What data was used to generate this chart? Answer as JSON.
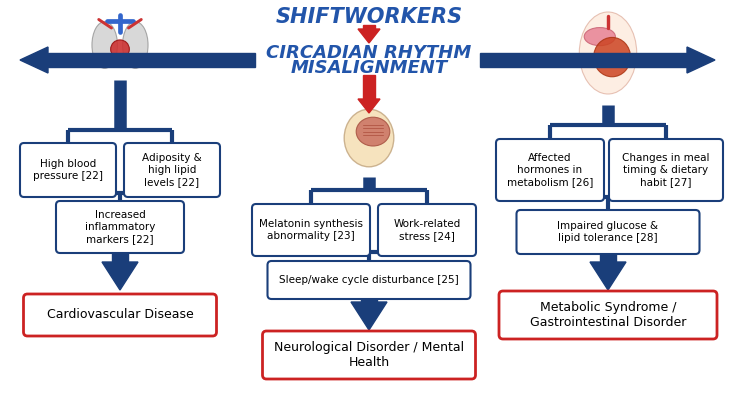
{
  "title_line1": "SHIFTWORKERS",
  "title_line3": "CIRCADIAN RHYTHM",
  "title_line4": "MISALIGNMENT",
  "title_color": "#2255AA",
  "arrow_color": "#1A3E7A",
  "red_color": "#CC2222",
  "box_bg": "#FFFFFF",
  "left_boxes_top": [
    "High blood\npressure [22]",
    "Adiposity &\nhigh lipid\nlevels [22]"
  ],
  "left_box_mid": "Increased\ninflammatory\nmarkers [22]",
  "left_box_bottom": "Cardiovascular Disease",
  "center_boxes_top": [
    "Melatonin synthesis\nabnormality [23]",
    "Work-related\nstress [24]"
  ],
  "center_box_mid": "Sleep/wake cycle disturbance [25]",
  "center_box_bottom": "Neurological Disorder / Mental\nHealth",
  "right_boxes_top": [
    "Affected\nhormones in\nmetabolism [26]",
    "Changes in meal\ntiming & dietary\nhabit [27]"
  ],
  "right_box_mid": "Impaired glucose &\nlipid tolerance [28]",
  "right_box_bottom": "Metabolic Syndrome /\nGastrointestinal Disorder",
  "bg_color": "#FFFFFF",
  "figw": 7.38,
  "figh": 4.15,
  "dpi": 100
}
